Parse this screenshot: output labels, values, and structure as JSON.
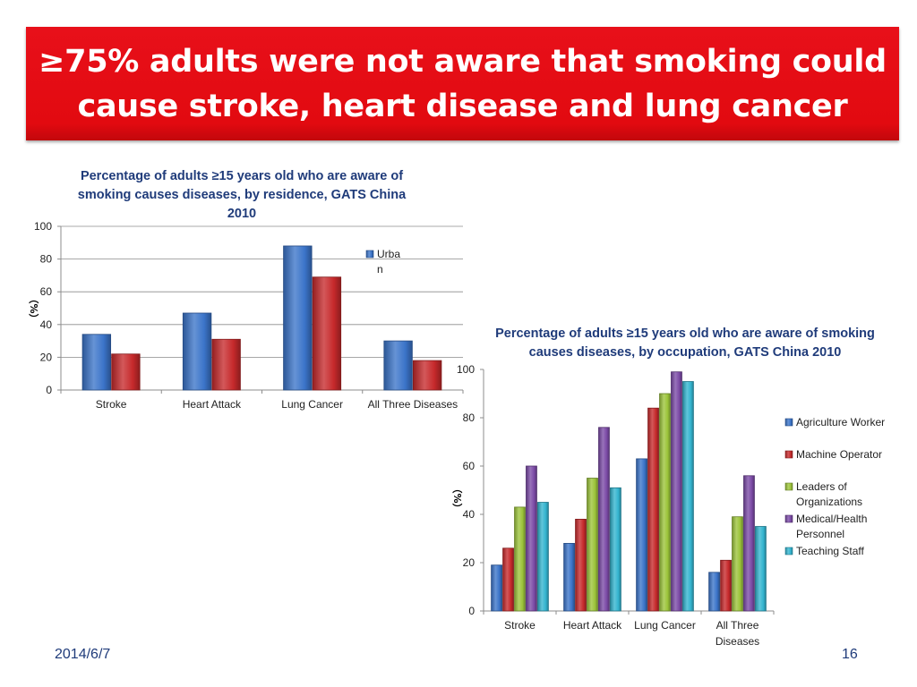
{
  "slide": {
    "title_line1": "≥75% adults were not aware that smoking could",
    "title_line2": "cause stroke, heart disease and lung cancer",
    "date": "2014/6/7",
    "page_number": "16",
    "banner_color": "#e8101a"
  },
  "chart_data": [
    {
      "type": "bar",
      "title": "Percentage of adults ≥15 years old who are aware of smoking causes diseases, by residence, GATS China 2010",
      "xlabel": "",
      "ylabel": "（%）",
      "categories": [
        "Stroke",
        "Heart Attack",
        "Lung Cancer",
        "All Three Diseases"
      ],
      "series": [
        {
          "name": "Urban",
          "legend_lines": [
            "Urba",
            "n"
          ],
          "color": "#3b74c9",
          "values": [
            34,
            47,
            88,
            30
          ]
        },
        {
          "values": [
            22,
            31,
            69,
            18
          ],
          "color": "#c6292b"
        }
      ],
      "ylim": [
        0,
        100
      ],
      "yticks": [
        0,
        20,
        40,
        60,
        80,
        100
      ],
      "grid": true,
      "legend": "top-right"
    },
    {
      "type": "bar",
      "title": "Percentage of adults ≥15 years old who are aware of smoking causes diseases, by occupation, GATS China 2010",
      "xlabel": "",
      "ylabel": "（%）",
      "categories": [
        "Stroke",
        "Heart Attack",
        "Lung Cancer",
        "All Three Diseases"
      ],
      "category_label_lines": [
        [
          "Stroke"
        ],
        [
          "Heart Attack"
        ],
        [
          "Lung Cancer"
        ],
        [
          "All Three",
          "Diseases"
        ]
      ],
      "series": [
        {
          "name": "Agriculture Worker",
          "legend_lines": [
            "Agriculture Worker"
          ],
          "color": "#3b74c9",
          "values": [
            19,
            28,
            63,
            16
          ]
        },
        {
          "name": "Machine Operator",
          "legend_lines": [
            "Machine Operator"
          ],
          "color": "#c6292b",
          "values": [
            26,
            38,
            84,
            21
          ]
        },
        {
          "name": "Leaders of Organizations",
          "legend_lines": [
            "Leaders of",
            "Organizations"
          ],
          "color": "#9cc43a",
          "values": [
            43,
            55,
            90,
            39
          ]
        },
        {
          "name": "Medical/Health Personnel",
          "legend_lines": [
            "Medical/Health",
            "Personnel"
          ],
          "color": "#7b4aa6",
          "values": [
            60,
            76,
            99,
            56
          ]
        },
        {
          "name": "Teaching Staff",
          "legend_lines": [
            "Teaching Staff"
          ],
          "color": "#33b4cf",
          "values": [
            45,
            51,
            95,
            35
          ]
        }
      ],
      "ylim": [
        0,
        100
      ],
      "yticks": [
        0,
        20,
        40,
        60,
        80,
        100
      ],
      "grid": false,
      "legend": "right"
    }
  ]
}
